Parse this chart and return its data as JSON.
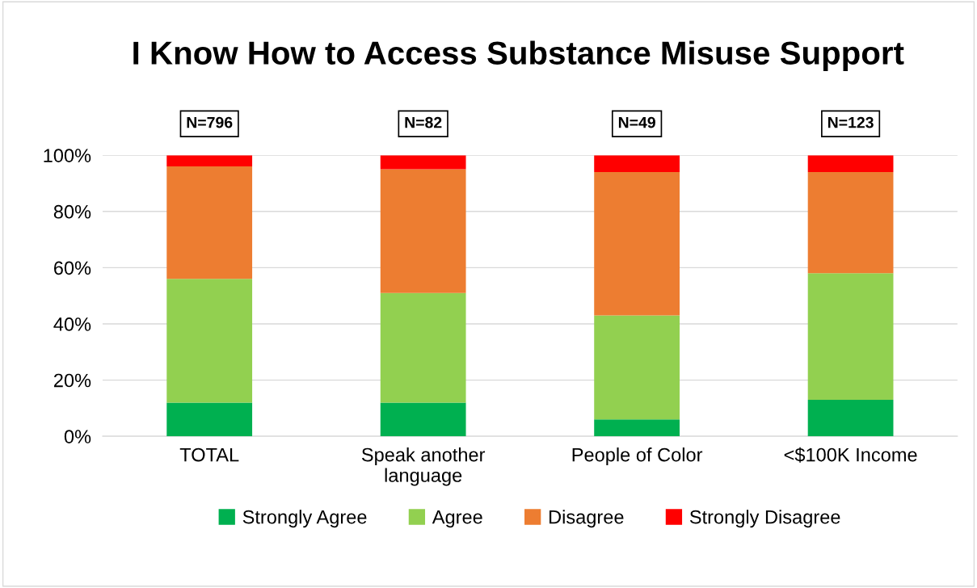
{
  "chart_data": {
    "type": "bar",
    "title": "I Know How to Access Substance Misuse Support",
    "stacked": true,
    "categories": [
      "TOTAL",
      "Speak another language",
      "People of Color",
      "<$100K Income"
    ],
    "series": [
      {
        "name": "Strongly Agree",
        "color": "#00b050",
        "values": [
          12,
          12,
          6,
          13
        ]
      },
      {
        "name": "Agree",
        "color": "#92d050",
        "values": [
          44,
          39,
          37,
          45
        ]
      },
      {
        "name": "Disagree",
        "color": "#ed7d31",
        "values": [
          40,
          44,
          51,
          36
        ]
      },
      {
        "name": "Strongly Disagree",
        "color": "#ff0000",
        "values": [
          4,
          5,
          6,
          6
        ]
      }
    ],
    "ylim": [
      0,
      100
    ],
    "yticks": [
      {
        "value": 0,
        "label": "0%"
      },
      {
        "value": 20,
        "label": "20%"
      },
      {
        "value": 40,
        "label": "40%"
      },
      {
        "value": 60,
        "label": "60%"
      },
      {
        "value": 80,
        "label": "80%"
      },
      {
        "value": 100,
        "label": "100%"
      }
    ],
    "grid": "y",
    "legend": "bottom",
    "annotations": [
      {
        "text": "N=796",
        "x": "TOTAL",
        "y": 100
      },
      {
        "text": "N=82",
        "x": "Speak another language",
        "y": 100
      },
      {
        "text": "N=49",
        "x": "People of Color",
        "y": 100
      },
      {
        "text": "N=123",
        "x": "<$100K Income",
        "y": 100
      }
    ]
  }
}
